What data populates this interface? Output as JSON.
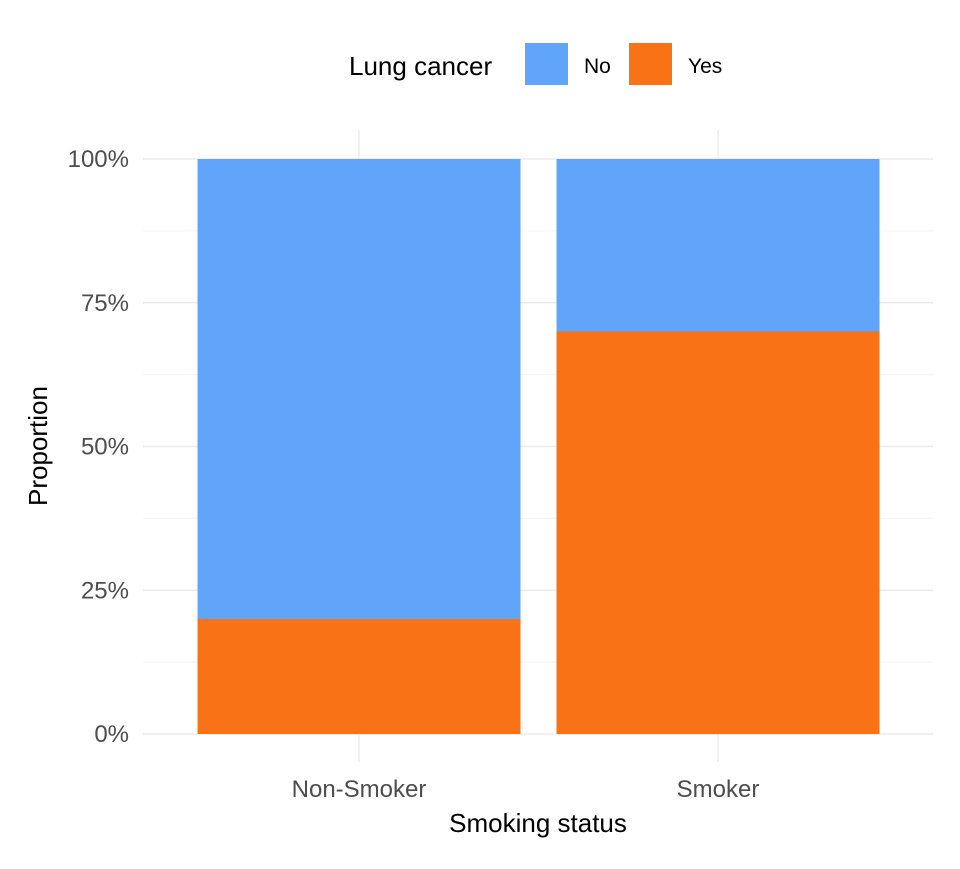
{
  "chart_data": {
    "type": "bar",
    "stacked": true,
    "categories": [
      "Non-Smoker",
      "Smoker"
    ],
    "series": [
      {
        "name": "No",
        "values": [
          0.8,
          0.3
        ],
        "color": "#60A5FA"
      },
      {
        "name": "Yes",
        "values": [
          0.2,
          0.7
        ],
        "color": "#F97316"
      }
    ],
    "xlabel": "Smoking status",
    "ylabel": "Proportion",
    "ylim": [
      0,
      1
    ],
    "yticks": [
      0,
      0.25,
      0.5,
      0.75,
      1
    ],
    "ytick_labels": [
      "0%",
      "25%",
      "50%",
      "75%",
      "100%"
    ],
    "grid": true,
    "legend": {
      "title": "Lung cancer",
      "position": "top",
      "entries": [
        "No",
        "Yes"
      ]
    }
  }
}
